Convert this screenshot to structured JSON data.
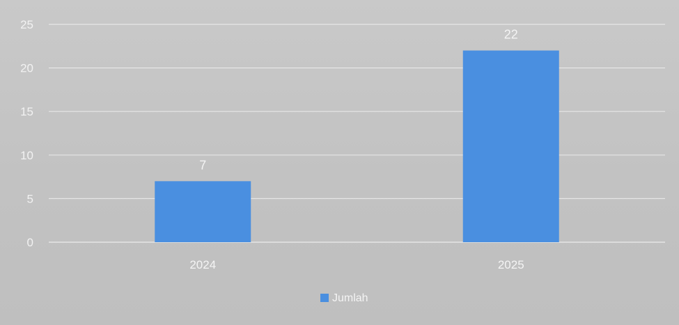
{
  "chart_data": {
    "type": "bar",
    "categories": [
      "2024",
      "2025"
    ],
    "series": [
      {
        "name": "Jumlah",
        "values": [
          7,
          22
        ],
        "color": "#4a8fe0"
      }
    ],
    "data_labels": [
      "7",
      "22"
    ],
    "ylim": [
      0,
      25
    ],
    "yticks": [
      0,
      5,
      10,
      15,
      20,
      25
    ],
    "grid": true,
    "legend_position": "bottom",
    "title": "",
    "xlabel": "",
    "ylabel": ""
  }
}
